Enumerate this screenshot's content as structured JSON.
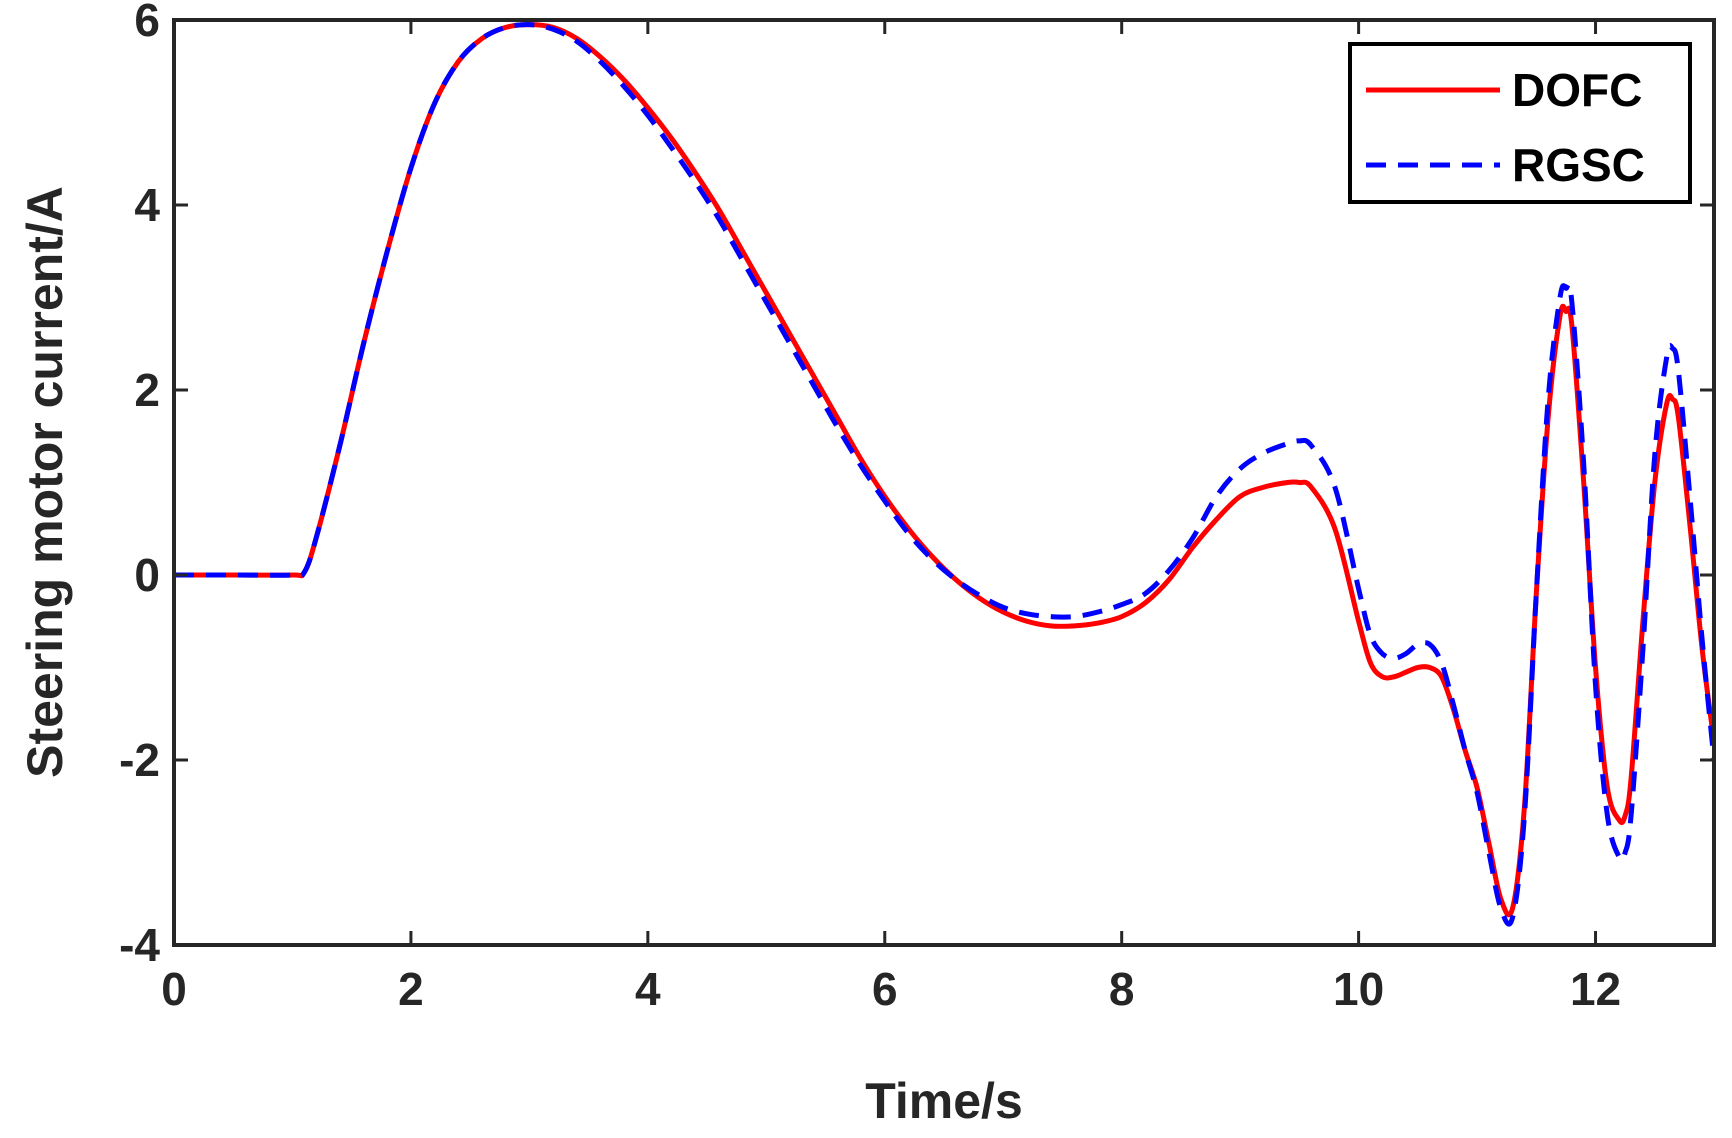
{
  "chart_data": {
    "type": "line",
    "xlabel": "Time/s",
    "ylabel": "Steering motor current/A",
    "xlim": [
      0,
      13
    ],
    "ylim": [
      -4,
      6
    ],
    "xticks": [
      0,
      2,
      4,
      6,
      8,
      10,
      12
    ],
    "yticks": [
      -4,
      -2,
      0,
      2,
      4,
      6
    ],
    "xtick_labels": [
      "0",
      "2",
      "4",
      "6",
      "8",
      "10",
      "12"
    ],
    "ytick_labels": [
      "-4",
      "-2",
      "0",
      "2",
      "4",
      "6"
    ],
    "grid": false,
    "legend_position": "top-right",
    "series": [
      {
        "name": "DOFC",
        "color": "#ff0000",
        "style": "solid",
        "x": [
          0,
          0.5,
          1.0,
          1.1,
          1.2,
          1.4,
          1.6,
          1.8,
          2.0,
          2.2,
          2.4,
          2.6,
          2.8,
          3.0,
          3.2,
          3.4,
          3.6,
          3.8,
          4.0,
          4.2,
          4.4,
          4.6,
          4.8,
          5.0,
          5.2,
          5.4,
          5.6,
          5.8,
          6.0,
          6.2,
          6.4,
          6.6,
          6.8,
          7.0,
          7.2,
          7.4,
          7.6,
          7.8,
          8.0,
          8.2,
          8.4,
          8.6,
          8.8,
          9.0,
          9.2,
          9.4,
          9.5,
          9.6,
          9.8,
          10.0,
          10.1,
          10.2,
          10.3,
          10.4,
          10.5,
          10.6,
          10.7,
          10.8,
          10.9,
          11.0,
          11.1,
          11.2,
          11.3,
          11.4,
          11.5,
          11.6,
          11.7,
          11.75,
          11.8,
          11.9,
          12.0,
          12.1,
          12.2,
          12.25,
          12.3,
          12.4,
          12.5,
          12.6,
          12.65,
          12.7,
          12.8,
          12.9,
          13.0
        ],
        "y": [
          0,
          0,
          0,
          0.03,
          0.4,
          1.4,
          2.5,
          3.5,
          4.4,
          5.1,
          5.55,
          5.8,
          5.92,
          5.95,
          5.92,
          5.8,
          5.6,
          5.35,
          5.05,
          4.72,
          4.35,
          3.95,
          3.5,
          3.05,
          2.6,
          2.15,
          1.7,
          1.25,
          0.85,
          0.5,
          0.2,
          -0.05,
          -0.25,
          -0.4,
          -0.5,
          -0.55,
          -0.55,
          -0.52,
          -0.45,
          -0.3,
          -0.05,
          0.3,
          0.6,
          0.85,
          0.95,
          1.0,
          1.0,
          0.95,
          0.5,
          -0.5,
          -0.95,
          -1.1,
          -1.1,
          -1.05,
          -1.0,
          -1.0,
          -1.1,
          -1.45,
          -1.9,
          -2.3,
          -2.9,
          -3.5,
          -3.6,
          -2.5,
          -0.2,
          1.7,
          2.8,
          2.85,
          2.7,
          1.0,
          -1.0,
          -2.3,
          -2.65,
          -2.6,
          -2.2,
          -0.5,
          1.0,
          1.85,
          1.9,
          1.7,
          0.5,
          -0.8,
          -1.8
        ]
      },
      {
        "name": "RGSC",
        "color": "#0000ff",
        "style": "dashed",
        "x": [
          0,
          0.5,
          1.0,
          1.1,
          1.2,
          1.4,
          1.6,
          1.8,
          2.0,
          2.2,
          2.4,
          2.6,
          2.8,
          3.0,
          3.2,
          3.4,
          3.6,
          3.8,
          4.0,
          4.2,
          4.4,
          4.6,
          4.8,
          5.0,
          5.2,
          5.4,
          5.6,
          5.8,
          6.0,
          6.2,
          6.4,
          6.6,
          6.8,
          7.0,
          7.2,
          7.4,
          7.6,
          7.8,
          8.0,
          8.2,
          8.4,
          8.6,
          8.8,
          9.0,
          9.2,
          9.4,
          9.5,
          9.6,
          9.8,
          10.0,
          10.1,
          10.2,
          10.3,
          10.4,
          10.5,
          10.6,
          10.7,
          10.8,
          10.9,
          11.0,
          11.1,
          11.2,
          11.3,
          11.4,
          11.5,
          11.6,
          11.7,
          11.75,
          11.8,
          11.9,
          12.0,
          12.1,
          12.2,
          12.25,
          12.3,
          12.4,
          12.5,
          12.6,
          12.65,
          12.7,
          12.8,
          12.9,
          13.0
        ],
        "y": [
          0,
          0,
          0,
          0.03,
          0.4,
          1.4,
          2.5,
          3.5,
          4.4,
          5.1,
          5.55,
          5.8,
          5.92,
          5.95,
          5.9,
          5.77,
          5.55,
          5.28,
          4.97,
          4.62,
          4.25,
          3.85,
          3.4,
          2.95,
          2.5,
          2.05,
          1.6,
          1.18,
          0.8,
          0.45,
          0.17,
          -0.05,
          -0.22,
          -0.35,
          -0.42,
          -0.45,
          -0.45,
          -0.4,
          -0.32,
          -0.2,
          0.05,
          0.4,
          0.85,
          1.15,
          1.32,
          1.42,
          1.45,
          1.4,
          0.95,
          -0.15,
          -0.65,
          -0.85,
          -0.9,
          -0.85,
          -0.75,
          -0.75,
          -0.95,
          -1.4,
          -1.9,
          -2.35,
          -3.0,
          -3.6,
          -3.7,
          -2.6,
          -0.2,
          1.9,
          3.0,
          3.1,
          2.95,
          1.2,
          -1.2,
          -2.6,
          -3.05,
          -3.0,
          -2.6,
          -0.8,
          1.3,
          2.35,
          2.45,
          2.2,
          0.8,
          -0.7,
          -2.0
        ]
      }
    ]
  }
}
